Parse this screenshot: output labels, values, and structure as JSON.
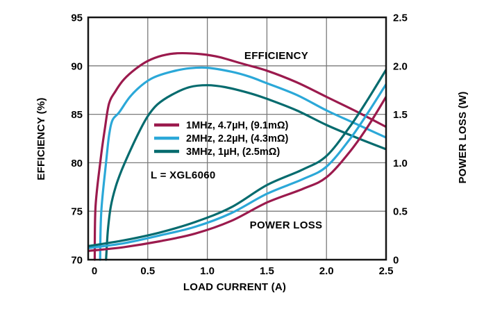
{
  "chart_data": {
    "type": "line",
    "title": "",
    "xlabel": "LOAD CURRENT (A)",
    "xlim": [
      0,
      2.5
    ],
    "x_ticks": [
      0,
      0.5,
      1.0,
      1.5,
      2.0,
      2.5
    ],
    "x_tick_labels": [
      "0",
      "0.5",
      "1.0",
      "1.5",
      "2.0",
      "2.5"
    ],
    "grid": true,
    "axes": {
      "left": {
        "label": "EFFICIENCY (%)",
        "lim": [
          70,
          95
        ],
        "ticks": [
          70,
          75,
          80,
          85,
          90,
          95
        ],
        "tick_labels": [
          "70",
          "75",
          "80",
          "85",
          "90",
          "95"
        ]
      },
      "right": {
        "label": "POWER LOSS (W)",
        "lim": [
          0,
          2.5
        ],
        "ticks": [
          0,
          0.5,
          1.0,
          1.5,
          2.0,
          2.5
        ],
        "tick_labels": [
          "0",
          "0.5",
          "1.0",
          "1.5",
          "2.0",
          "2.5"
        ]
      }
    },
    "annotations": {
      "efficiency_label": "EFFICIENCY",
      "power_loss_label": "POWER LOSS",
      "inductor_note": "L = XGL6060"
    },
    "legend": {
      "position": "inside-left-middle",
      "items": [
        {
          "label": "1MHz, 4.7µH, (9.1mΩ)",
          "color": "#9B1A4D"
        },
        {
          "label": "2MHz, 2.2µH, (4.3mΩ)",
          "color": "#2BA8D8"
        },
        {
          "label": "3MHz, 1µH, (2.5mΩ)",
          "color": "#056B6E"
        }
      ]
    },
    "colors": {
      "grid": "#7a7a7a",
      "axis": "#141414",
      "text": "#000000",
      "background": "#ffffff"
    },
    "series": [
      {
        "name": "efficiency-1mhz",
        "axis": "left",
        "color": "#9B1A4D",
        "points": [
          [
            0.055,
            70
          ],
          [
            0.062,
            75.5
          ],
          [
            0.105,
            80.4
          ],
          [
            0.14,
            83.5
          ],
          [
            0.175,
            86.1
          ],
          [
            0.23,
            87.4
          ],
          [
            0.3,
            88.6
          ],
          [
            0.4,
            89.7
          ],
          [
            0.5,
            90.5
          ],
          [
            0.62,
            91.05
          ],
          [
            0.75,
            91.3
          ],
          [
            0.95,
            91.2
          ],
          [
            1.1,
            90.9
          ],
          [
            1.3,
            90.2
          ],
          [
            1.5,
            89.5
          ],
          [
            1.75,
            88.3
          ],
          [
            2.0,
            86.8
          ],
          [
            2.25,
            85.3
          ],
          [
            2.5,
            83.7
          ]
        ]
      },
      {
        "name": "efficiency-2mhz",
        "axis": "left",
        "color": "#2BA8D8",
        "points": [
          [
            0.1,
            70
          ],
          [
            0.11,
            75
          ],
          [
            0.15,
            80
          ],
          [
            0.175,
            82.8
          ],
          [
            0.204,
            84.4
          ],
          [
            0.26,
            85.2
          ],
          [
            0.35,
            86.8
          ],
          [
            0.45,
            88.0
          ],
          [
            0.55,
            88.8
          ],
          [
            0.7,
            89.4
          ],
          [
            0.85,
            89.75
          ],
          [
            1.0,
            89.8
          ],
          [
            1.2,
            89.4
          ],
          [
            1.35,
            88.9
          ],
          [
            1.5,
            88.2
          ],
          [
            1.75,
            87.0
          ],
          [
            2.0,
            85.4
          ],
          [
            2.25,
            84.0
          ],
          [
            2.5,
            82.6
          ]
        ]
      },
      {
        "name": "efficiency-3mhz",
        "axis": "left",
        "color": "#056B6E",
        "points": [
          [
            0.15,
            70
          ],
          [
            0.165,
            73
          ],
          [
            0.19,
            75.5
          ],
          [
            0.23,
            77.5
          ],
          [
            0.28,
            79.2
          ],
          [
            0.34,
            80.9
          ],
          [
            0.42,
            83.0
          ],
          [
            0.5,
            84.8
          ],
          [
            0.58,
            86.0
          ],
          [
            0.7,
            87.0
          ],
          [
            0.85,
            87.8
          ],
          [
            1.0,
            88.0
          ],
          [
            1.15,
            87.8
          ],
          [
            1.35,
            87.2
          ],
          [
            1.5,
            86.6
          ],
          [
            1.75,
            85.4
          ],
          [
            2.0,
            83.9
          ],
          [
            2.25,
            82.6
          ],
          [
            2.5,
            81.4
          ]
        ]
      },
      {
        "name": "power-loss-1mhz",
        "axis": "right",
        "color": "#9B1A4D",
        "points": [
          [
            0,
            0.09
          ],
          [
            0.3,
            0.13
          ],
          [
            0.6,
            0.19
          ],
          [
            0.9,
            0.27
          ],
          [
            1.2,
            0.4
          ],
          [
            1.5,
            0.59
          ],
          [
            1.8,
            0.73
          ],
          [
            2.0,
            0.85
          ],
          [
            2.2,
            1.12
          ],
          [
            2.35,
            1.38
          ],
          [
            2.5,
            1.68
          ]
        ]
      },
      {
        "name": "power-loss-2mhz",
        "axis": "right",
        "color": "#2BA8D8",
        "points": [
          [
            0,
            0.12
          ],
          [
            0.3,
            0.17
          ],
          [
            0.6,
            0.25
          ],
          [
            0.9,
            0.34
          ],
          [
            1.2,
            0.48
          ],
          [
            1.5,
            0.68
          ],
          [
            1.8,
            0.83
          ],
          [
            2.0,
            0.96
          ],
          [
            2.2,
            1.25
          ],
          [
            2.35,
            1.52
          ],
          [
            2.5,
            1.81
          ]
        ]
      },
      {
        "name": "power-loss-3mhz",
        "axis": "right",
        "color": "#056B6E",
        "points": [
          [
            0,
            0.14
          ],
          [
            0.3,
            0.2
          ],
          [
            0.6,
            0.28
          ],
          [
            0.9,
            0.39
          ],
          [
            1.2,
            0.54
          ],
          [
            1.5,
            0.77
          ],
          [
            1.8,
            0.93
          ],
          [
            2.0,
            1.07
          ],
          [
            2.2,
            1.38
          ],
          [
            2.35,
            1.66
          ],
          [
            2.5,
            1.96
          ]
        ]
      }
    ]
  }
}
